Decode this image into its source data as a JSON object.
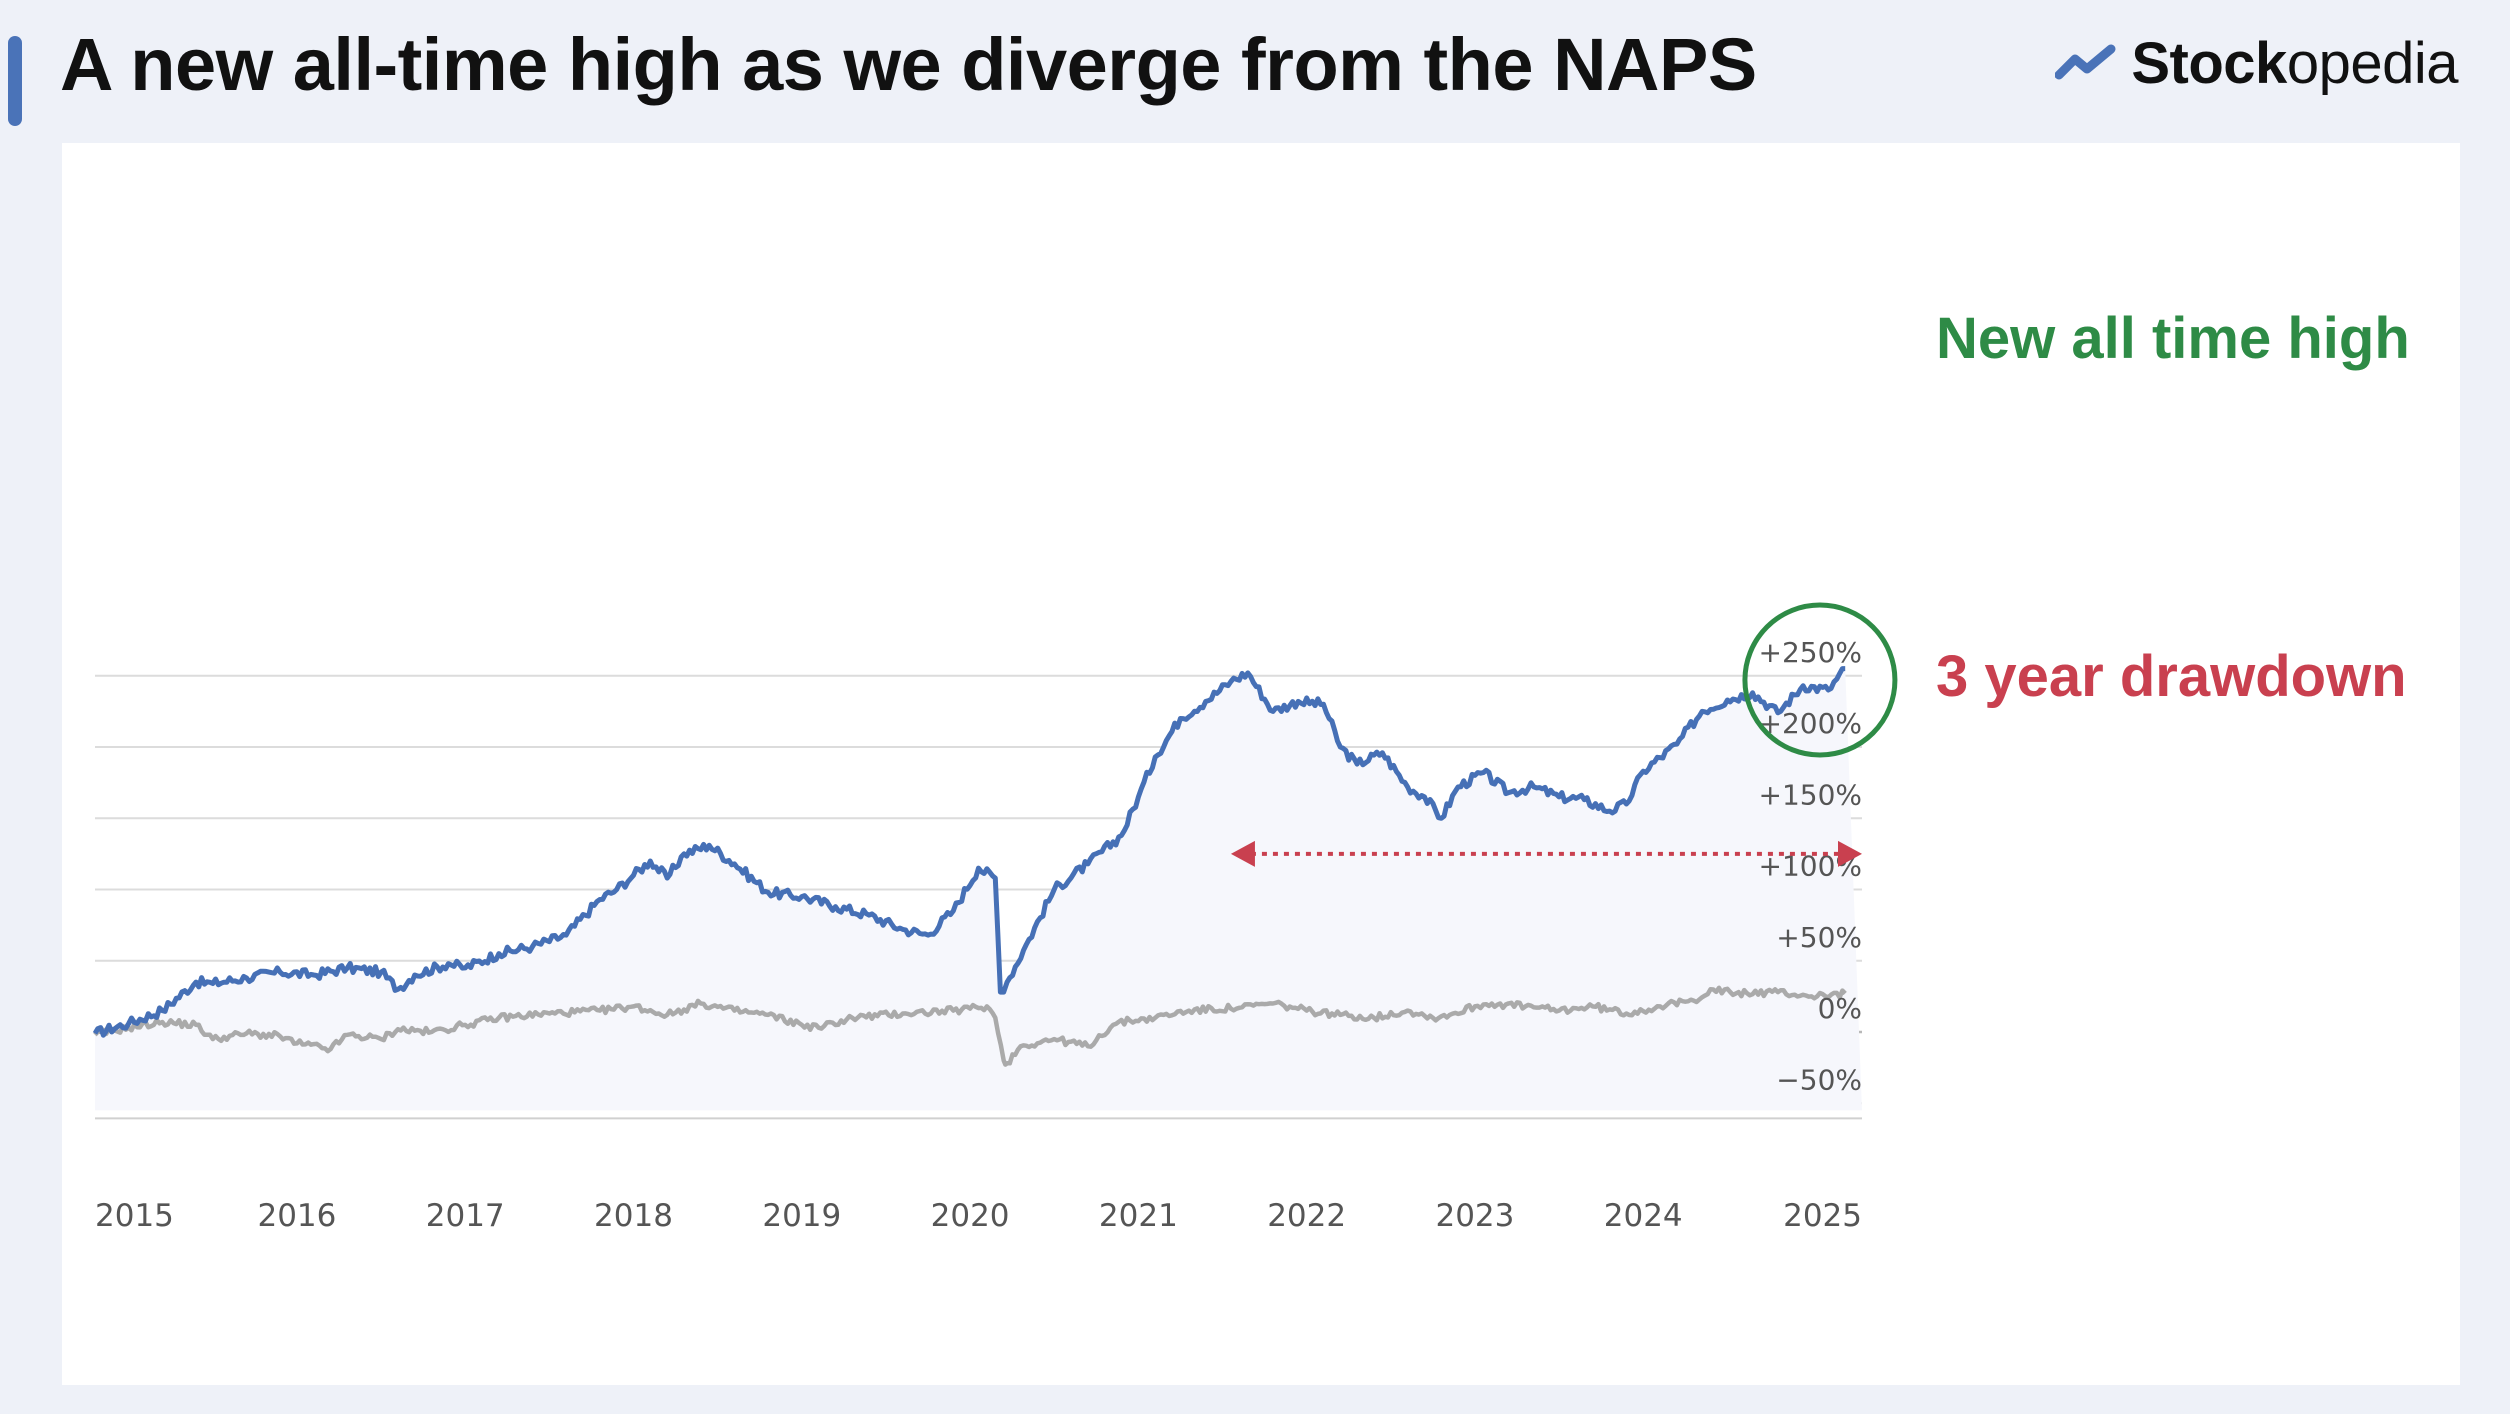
{
  "header": {
    "title": "A new all-time high as we diverge from the NAPS",
    "brand_prefix": "Stock",
    "brand_suffix": "opedia",
    "brand_icon": "trend-line-icon"
  },
  "colors": {
    "accent": "#4a73b8",
    "portfolio_line": "#4670b6",
    "benchmark_line": "#aaaaaa",
    "high_annotation": "#2e8b46",
    "drawdown_annotation": "#c9404f"
  },
  "chart_data": {
    "type": "line",
    "title": "",
    "xlabel": "",
    "ylabel": "",
    "x_ticks": [
      "2015",
      "2016",
      "2017",
      "2018",
      "2019",
      "2020",
      "2021",
      "2022",
      "2023",
      "2024",
      "2025"
    ],
    "y_ticks": [
      "+250%",
      "+200%",
      "+150%",
      "+100%",
      "+50%",
      "0%",
      "−50%"
    ],
    "y_tick_values": [
      250,
      200,
      150,
      100,
      50,
      0,
      -50
    ],
    "ylim": [
      -55,
      262
    ],
    "xlim": [
      2014.8,
      2025.3
    ],
    "grid": "horizontal",
    "series": [
      {
        "style": "solid-blue",
        "x": [
          2014.8,
          2015.0,
          2015.2,
          2015.4,
          2015.5,
          2015.7,
          2015.9,
          2016.1,
          2016.3,
          2016.5,
          2016.6,
          2016.7,
          2016.9,
          2017.0,
          2017.2,
          2017.4,
          2017.6,
          2017.8,
          2017.9,
          2018.0,
          2018.1,
          2018.2,
          2018.3,
          2018.45,
          2018.6,
          2018.8,
          2019.0,
          2019.2,
          2019.4,
          2019.6,
          2019.75,
          2019.9,
          2020.05,
          2020.15,
          2020.18,
          2020.22,
          2020.35,
          2020.5,
          2020.7,
          2020.9,
          2021.0,
          2021.1,
          2021.25,
          2021.4,
          2021.55,
          2021.65,
          2021.8,
          2021.95,
          2022.1,
          2022.2,
          2022.3,
          2022.45,
          2022.6,
          2022.7,
          2022.8,
          2022.9,
          2023.05,
          2023.2,
          2023.35,
          2023.5,
          2023.65,
          2023.8,
          2023.9,
          2024.0,
          2024.2,
          2024.35,
          2024.5,
          2024.65,
          2024.8,
          2024.95,
          2025.1,
          2025.2
        ],
        "values": [
          -1,
          6,
          15,
          35,
          34,
          38,
          42,
          40,
          45,
          42,
          30,
          40,
          48,
          45,
          55,
          60,
          68,
          93,
          100,
          110,
          120,
          108,
          125,
          131,
          118,
          98,
          95,
          88,
          82,
          72,
          68,
          85,
          115,
          108,
          28,
          35,
          65,
          100,
          118,
          138,
          165,
          193,
          220,
          232,
          246,
          252,
          225,
          232,
          230,
          200,
          188,
          196,
          172,
          165,
          150,
          172,
          182,
          168,
          172,
          165,
          163,
          155,
          160,
          183,
          202,
          225,
          233,
          238,
          224,
          243,
          240,
          255
        ]
      },
      {
        "style": "solid-grey",
        "x": [
          2014.8,
          2015.0,
          2015.2,
          2015.4,
          2015.5,
          2015.7,
          2015.9,
          2016.0,
          2016.2,
          2016.3,
          2016.5,
          2016.6,
          2016.8,
          2017.0,
          2017.2,
          2017.5,
          2017.8,
          2018.0,
          2018.2,
          2018.4,
          2018.6,
          2018.8,
          2019.0,
          2019.1,
          2019.3,
          2019.6,
          2019.9,
          2020.1,
          2020.15,
          2020.2,
          2020.22,
          2020.3,
          2020.5,
          2020.7,
          2020.85,
          2020.95,
          2021.1,
          2021.3,
          2021.6,
          2021.8,
          2022.0,
          2022.2,
          2022.4,
          2022.6,
          2022.75,
          2022.85,
          2023.0,
          2023.1,
          2023.3,
          2023.5,
          2023.7,
          2023.9,
          2024.1,
          2024.3,
          2024.4,
          2024.55,
          2024.8,
          2025.0,
          2025.2
        ],
        "values": [
          -2,
          3,
          7,
          5,
          -5,
          -1,
          -3,
          -8,
          -12,
          -2,
          -5,
          2,
          0,
          5,
          10,
          13,
          15,
          18,
          12,
          20,
          15,
          12,
          5,
          3,
          10,
          13,
          15,
          18,
          10,
          -20,
          -22,
          -10,
          -5,
          -10,
          5,
          8,
          10,
          15,
          17,
          20,
          15,
          12,
          10,
          15,
          10,
          12,
          18,
          20,
          18,
          15,
          18,
          13,
          18,
          22,
          30,
          27,
          28,
          25,
          27
        ]
      }
    ],
    "annotations": {
      "new_high": "New all time high",
      "drawdown": "3 year drawdown"
    },
    "drawdown_span": [
      2021.55,
      2025.3
    ],
    "drawdown_level": 125,
    "highlight_center": [
      2025.05,
      247
    ]
  }
}
